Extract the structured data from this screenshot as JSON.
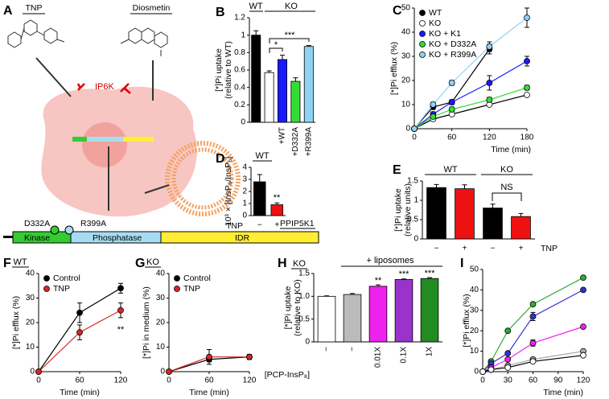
{
  "diagram": {
    "label": "A",
    "compounds": [
      "TNP",
      "Diosmetin"
    ],
    "enzyme": "IP6K",
    "mutations": [
      "D332A",
      "R399A"
    ],
    "protein": "PPIP5K1",
    "domains": [
      "Kinase",
      "Phosphatase",
      "IDR"
    ]
  },
  "chart_data": [
    {
      "type": "bar",
      "label": "B",
      "ylabel": [
        "[*]Pi uptake",
        "(relative to WT)"
      ],
      "categories": [
        null,
        null,
        "+WT",
        "+D332A",
        "+R399A"
      ],
      "values": [
        1.0,
        0.57,
        0.72,
        0.47,
        0.87
      ],
      "errors": [
        0.05,
        0.02,
        0.05,
        0.04,
        0.01
      ],
      "colors": [
        "#000000",
        "#ffffff",
        "#1a1aff",
        "#33dd33",
        "#8fd3f4"
      ],
      "ylim": [
        0,
        1.2
      ],
      "yticks": [
        0,
        0.2,
        0.4,
        0.6,
        0.8,
        1,
        1.2
      ],
      "annotations": [
        "WT",
        "KO",
        "*",
        "***"
      ]
    },
    {
      "type": "line",
      "label": "C",
      "xlabel": "Time (min)",
      "ylabel": "[*]Pi efflux (%)",
      "x": [
        0,
        30,
        60,
        120,
        180
      ],
      "legend": "upper left",
      "series": [
        {
          "name": "WT",
          "color": "#000000",
          "values": [
            0,
            9,
            11,
            33,
            null
          ],
          "errors": [
            0,
            1,
            1,
            2,
            null
          ]
        },
        {
          "name": "KO",
          "color": "#ffffff",
          "values": [
            0,
            4,
            6,
            10,
            14
          ],
          "errors": [
            0,
            0.5,
            0.5,
            0.5,
            0.5
          ]
        },
        {
          "name": "KO + K1",
          "color": "#1a1aff",
          "values": [
            0,
            6,
            11,
            19,
            28
          ],
          "errors": [
            0,
            1,
            1,
            3,
            2
          ]
        },
        {
          "name": "KO + D332A",
          "color": "#33dd33",
          "values": [
            0,
            5,
            8,
            12,
            17
          ],
          "errors": [
            0,
            0.5,
            1,
            1,
            1
          ]
        },
        {
          "name": "KO + R399A",
          "color": "#8fd3f4",
          "values": [
            0,
            10,
            19,
            34,
            46
          ],
          "errors": [
            0,
            1,
            1,
            2,
            4
          ]
        }
      ],
      "xlim": [
        0,
        180
      ],
      "xticks": [
        0,
        60,
        120,
        180
      ],
      "ylim": [
        0,
        50
      ],
      "yticks": [
        0,
        10,
        20,
        30,
        40,
        50
      ]
    },
    {
      "type": "bar",
      "label": "D",
      "xlabel": "TNP",
      "ylabel": "10³ × [InsP₈/InsP₆]",
      "categories": [
        "−",
        "+"
      ],
      "values": [
        2.8,
        0.9
      ],
      "errors": [
        0.6,
        0.15
      ],
      "colors": [
        "#000000",
        "#ee1111"
      ],
      "ylim": [
        0,
        4
      ],
      "yticks": [
        0,
        1,
        2,
        3,
        4
      ],
      "annotations": [
        "WT",
        "**"
      ]
    },
    {
      "type": "bar",
      "label": "E",
      "xlabel": "TNP",
      "ylabel": [
        "[*]Pi uptake",
        "(relative units)"
      ],
      "categories": [
        "−",
        "+",
        "−",
        "+"
      ],
      "values": [
        1.33,
        1.3,
        0.8,
        0.58
      ],
      "errors": [
        0.08,
        0.1,
        0.1,
        0.08
      ],
      "colors": [
        "#000000",
        "#ee1111",
        "#000000",
        "#ee1111"
      ],
      "ylim": [
        0,
        1.5
      ],
      "yticks": [
        0,
        0.5,
        1,
        1.5
      ],
      "annotations": [
        "WT",
        "KO",
        "NS"
      ]
    },
    {
      "type": "line",
      "label": "F",
      "xlabel": "Time (min)",
      "ylabel": "[*]Pi efflux (%)",
      "x": [
        0,
        60,
        120
      ],
      "legend": "upper left",
      "series": [
        {
          "name": "Control",
          "color": "#000000",
          "values": [
            0,
            24,
            34
          ],
          "errors": [
            0,
            4,
            2
          ]
        },
        {
          "name": "TNP",
          "color": "#d62728",
          "values": [
            0,
            16,
            25
          ],
          "errors": [
            0,
            3,
            3
          ]
        }
      ],
      "xlim": [
        0,
        120
      ],
      "xticks": [
        0,
        60,
        120
      ],
      "ylim": [
        0,
        40
      ],
      "yticks": [
        0,
        10,
        20,
        30,
        40
      ],
      "annotations": [
        "WT",
        "**"
      ]
    },
    {
      "type": "line",
      "label": "G",
      "xlabel": "Time (min)",
      "ylabel": "[*]Pi in medium (%)",
      "x": [
        0,
        60,
        120
      ],
      "legend": "upper left",
      "series": [
        {
          "name": "Control",
          "color": "#000000",
          "values": [
            0,
            5,
            6
          ],
          "errors": [
            0,
            1,
            1
          ]
        },
        {
          "name": "TNP",
          "color": "#d62728",
          "values": [
            0,
            6,
            6
          ],
          "errors": [
            0,
            3,
            1
          ]
        }
      ],
      "xlim": [
        0,
        120
      ],
      "xticks": [
        0,
        60,
        120
      ],
      "ylim": [
        0,
        40
      ],
      "yticks": [
        0,
        10,
        20,
        30,
        40
      ],
      "annotations": [
        "KO"
      ]
    },
    {
      "type": "bar",
      "label": "H",
      "xlabel": "[PCP-InsP₈]",
      "ylabel": [
        "[*]Pi uptake",
        "(relative to KO)"
      ],
      "categories": [
        "−",
        "−",
        "0.01X",
        "0.1X",
        "1X"
      ],
      "values": [
        1.0,
        1.04,
        1.22,
        1.37,
        1.39
      ],
      "errors": [
        0.01,
        0.02,
        0.03,
        0.01,
        0.02
      ],
      "colors": [
        "#ffffff",
        "#bbbbbb",
        "#ee22ee",
        "#9933cc",
        "#228b22"
      ],
      "ylim": [
        0,
        1.5
      ],
      "yticks": [
        0,
        0.5,
        {
          "value": 1,
          "label": "1.0"
        },
        1.5
      ],
      "annotations": [
        "KO",
        "+ liposomes",
        "**",
        "***",
        "***"
      ]
    },
    {
      "type": "line",
      "label": "I",
      "xlabel": "Time (min)",
      "ylabel": "[*]Pi efflux (%)",
      "x": [
        0,
        10,
        30,
        60,
        120
      ],
      "series": [
        {
          "color": "#33aa33",
          "values": [
            0,
            5,
            20,
            33,
            46
          ],
          "errors": [
            0,
            0,
            0,
            0,
            0
          ]
        },
        {
          "color": "#3333cc",
          "values": [
            0,
            4,
            9,
            27,
            40
          ],
          "errors": [
            0,
            0,
            0,
            2,
            0
          ]
        },
        {
          "color": "#ee22ee",
          "values": [
            0,
            2,
            6,
            14,
            22
          ],
          "errors": [
            0,
            0,
            0,
            1.5,
            0
          ]
        },
        {
          "color": "#aaaaaa",
          "values": [
            0,
            1,
            3,
            6,
            10
          ],
          "errors": [
            0,
            0,
            0,
            0,
            0
          ]
        },
        {
          "color": "#ffffff",
          "values": [
            0,
            1,
            2,
            5,
            8
          ],
          "errors": [
            0,
            0,
            0,
            0,
            0
          ]
        }
      ],
      "xlim": [
        0,
        120
      ],
      "xticks": [
        0,
        30,
        60,
        90,
        120
      ],
      "ylim": [
        0,
        50
      ],
      "yticks": [
        0,
        10,
        20,
        30,
        40,
        50
      ]
    }
  ]
}
